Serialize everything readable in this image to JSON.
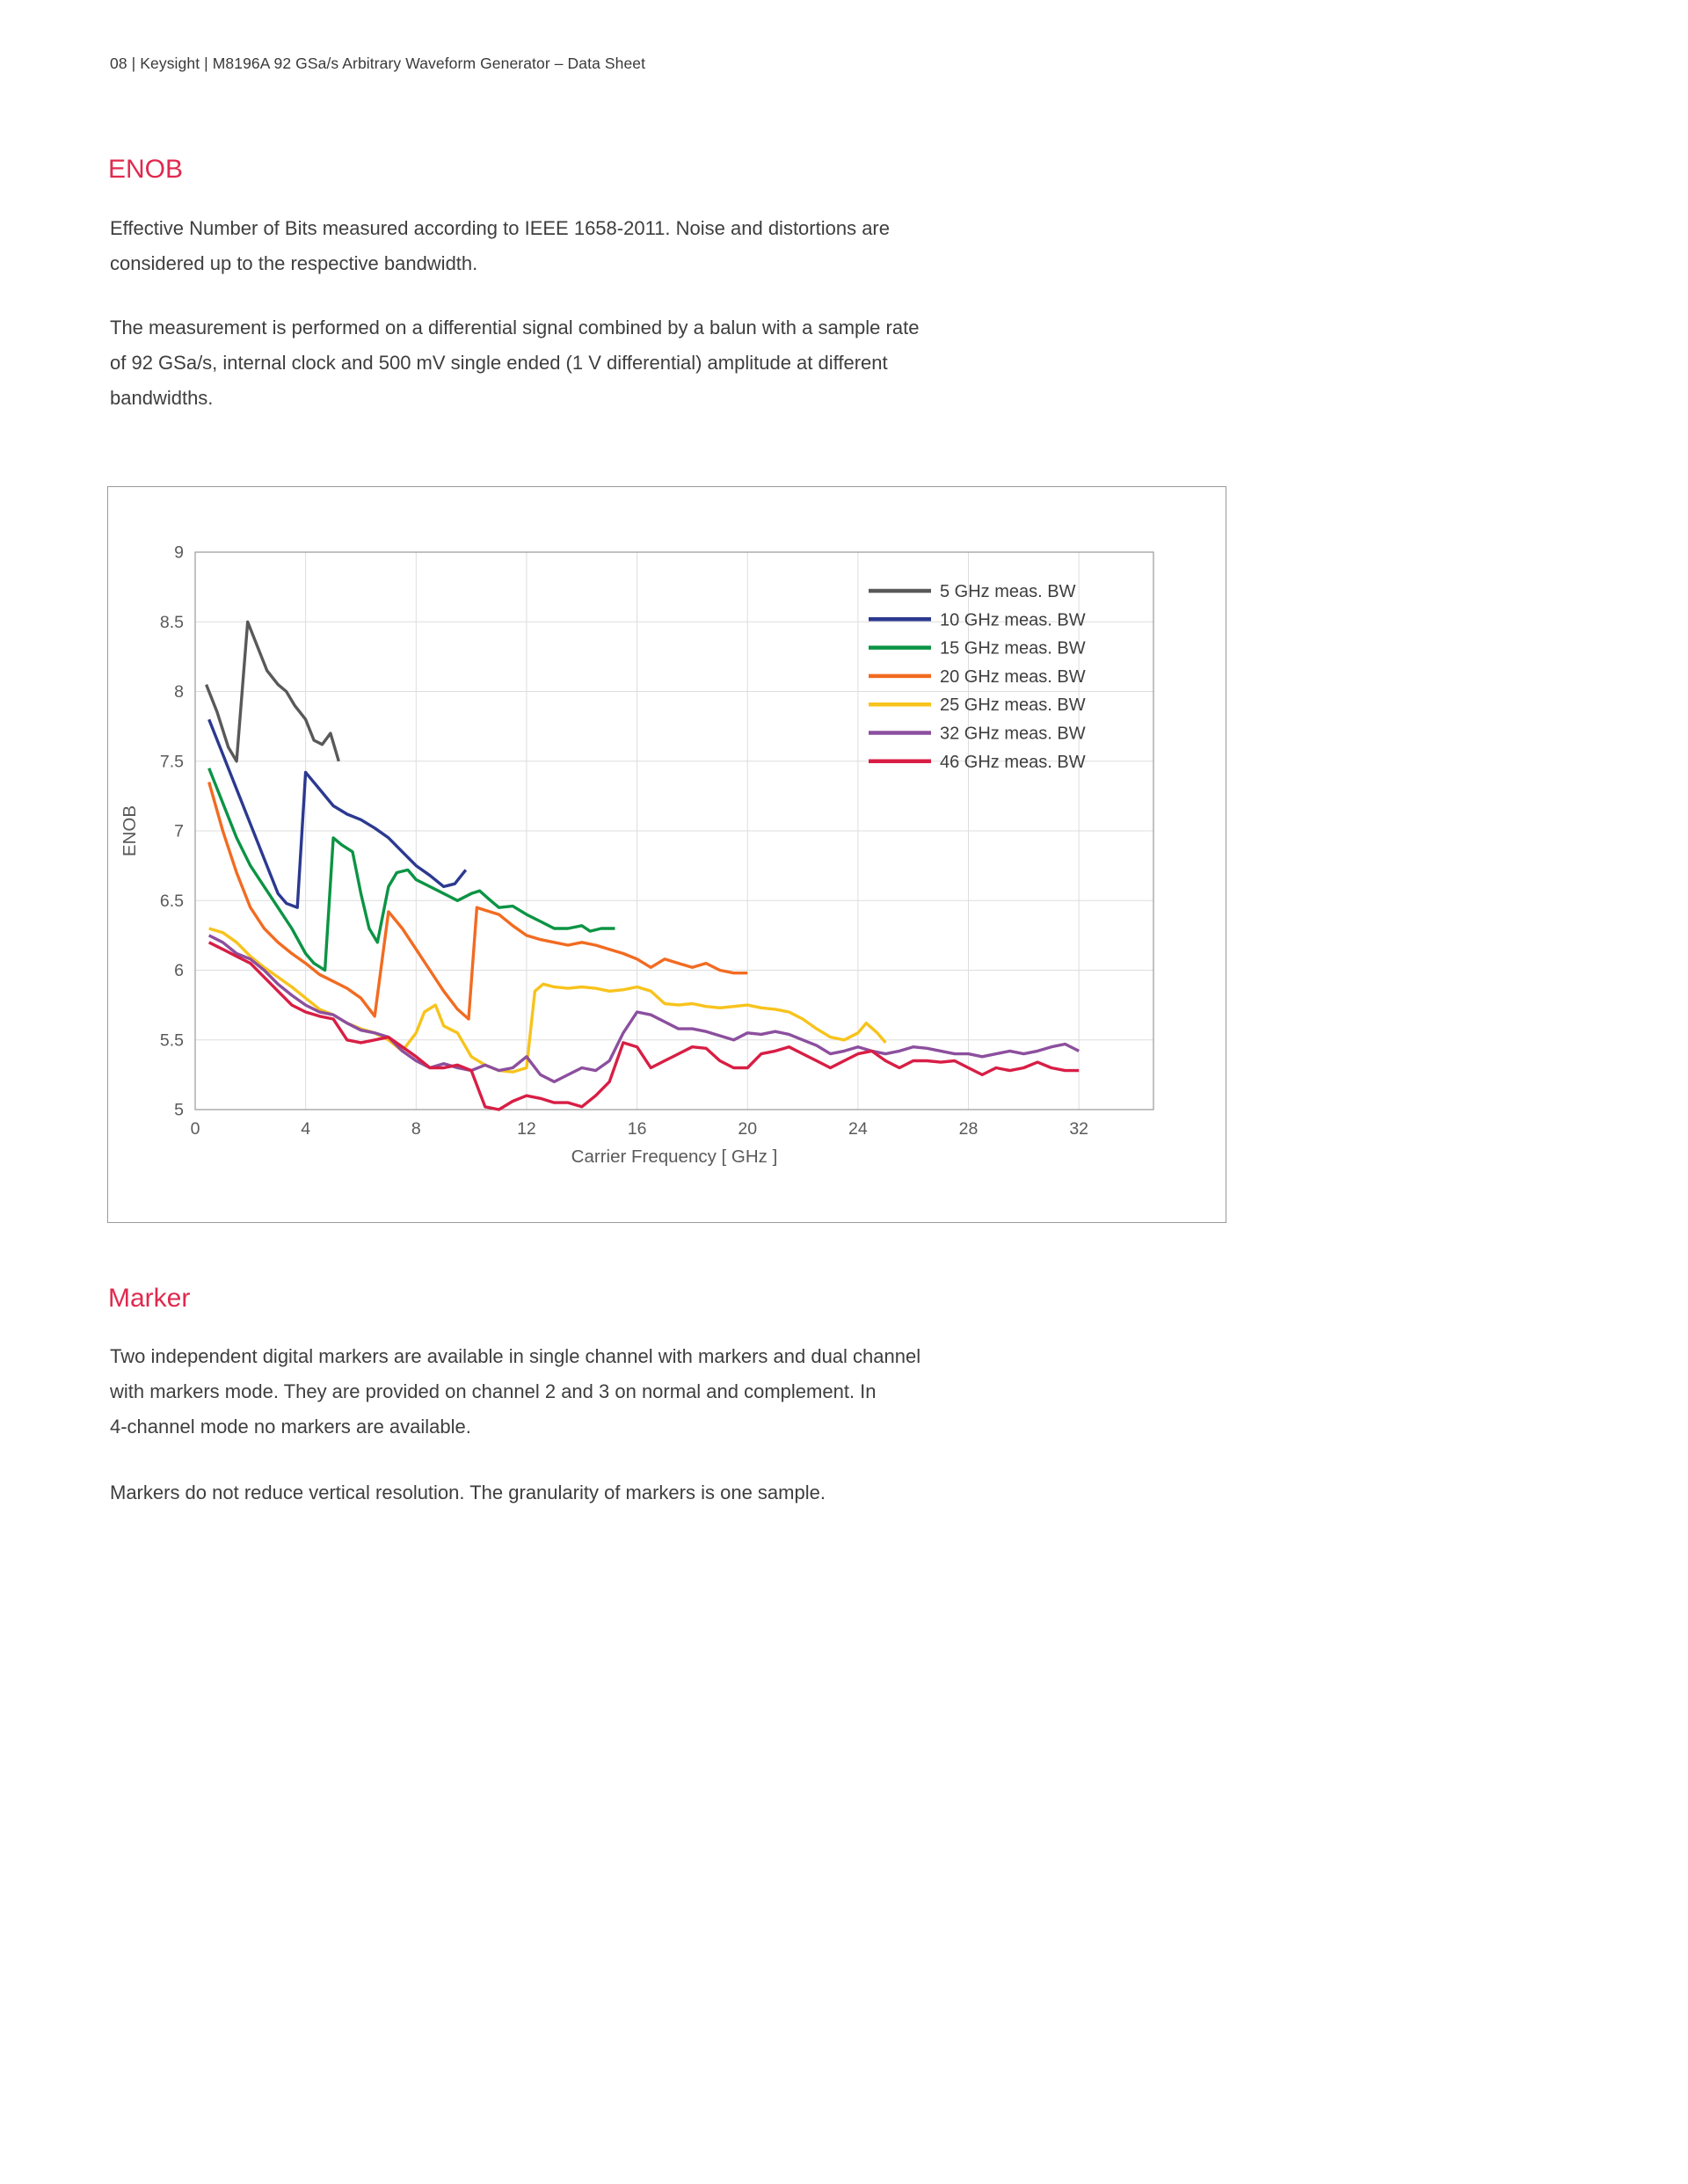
{
  "colors": {
    "accent": "#e0294e",
    "body_text": "#3e3e3e",
    "axis": "#9a9a9a",
    "tick_text": "#5a5a5a",
    "grid": "#dddddd"
  },
  "page": {
    "header": "08 | Keysight | M8196A 92 GSa/s Arbitrary Waveform Generator – Data Sheet"
  },
  "enob": {
    "title": "ENOB",
    "paragraphs": [
      "Effective Number of Bits measured according to IEEE 1658-2011. Noise and distortions are\nconsidered up to the respective bandwidth.",
      "The measurement is performed on a differential signal combined by a balun with a sample rate\nof 92 GSa/s, internal clock and 500 mV single ended (1 V differential) amplitude at different\nbandwidths."
    ]
  },
  "marker": {
    "title": "Marker",
    "paragraphs": [
      "Two independent digital markers are available in single channel with markers and dual channel\nwith markers mode. They are provided on channel 2 and 3 on normal and complement. In\n4-channel mode no markers are available.",
      "Markers do not reduce vertical resolution. The granularity of markers is one sample."
    ]
  },
  "chart_data": {
    "type": "line",
    "title": "",
    "xlabel": "Carrier Frequency [ GHz ]",
    "ylabel": "ENOB",
    "xlim": [
      0,
      34.7
    ],
    "ylim": [
      5,
      9
    ],
    "xticks": [
      0,
      4,
      8,
      12,
      16,
      20,
      24,
      28,
      32
    ],
    "yticks": [
      5,
      5.5,
      6,
      6.5,
      7,
      7.5,
      8,
      8.5,
      9
    ],
    "grid": true,
    "legend_position": "top-right",
    "series": [
      {
        "name": "5 GHz meas. BW",
        "color": "#595959",
        "x": [
          0.4,
          0.8,
          1.2,
          1.5,
          1.9,
          2.2,
          2.6,
          3,
          3.3,
          3.6,
          4,
          4.3,
          4.6,
          4.9,
          5.2
        ],
        "y": [
          8.05,
          7.85,
          7.6,
          7.5,
          8.5,
          8.35,
          8.15,
          8.05,
          8.0,
          7.9,
          7.8,
          7.65,
          7.62,
          7.7,
          7.5
        ]
      },
      {
        "name": "10 GHz meas. BW",
        "color": "#2b3990",
        "x": [
          0.5,
          1,
          1.5,
          2,
          2.5,
          3,
          3.3,
          3.7,
          4,
          4.5,
          5,
          5.5,
          6,
          6.5,
          7,
          7.5,
          8,
          8.5,
          9,
          9.4,
          9.8
        ],
        "y": [
          7.8,
          7.55,
          7.3,
          7.05,
          6.8,
          6.55,
          6.48,
          6.45,
          7.42,
          7.3,
          7.18,
          7.12,
          7.08,
          7.02,
          6.95,
          6.85,
          6.75,
          6.68,
          6.6,
          6.62,
          6.72
        ]
      },
      {
        "name": "15 GHz meas. BW",
        "color": "#0b9444",
        "x": [
          0.5,
          1,
          1.5,
          2,
          2.5,
          3,
          3.5,
          4,
          4.3,
          4.7,
          5,
          5.3,
          5.7,
          6,
          6.3,
          6.6,
          7,
          7.3,
          7.7,
          8,
          8.5,
          9,
          9.5,
          10,
          10.3,
          10.7,
          11,
          11.5,
          12,
          12.5,
          13,
          13.5,
          14,
          14.3,
          14.7,
          15.2
        ],
        "y": [
          7.45,
          7.2,
          6.95,
          6.75,
          6.6,
          6.45,
          6.3,
          6.12,
          6.05,
          6.0,
          6.95,
          6.9,
          6.85,
          6.55,
          6.3,
          6.2,
          6.6,
          6.7,
          6.72,
          6.65,
          6.6,
          6.55,
          6.5,
          6.55,
          6.57,
          6.5,
          6.45,
          6.46,
          6.4,
          6.35,
          6.3,
          6.3,
          6.32,
          6.28,
          6.3,
          6.3
        ]
      },
      {
        "name": "20 GHz meas. BW",
        "color": "#f26b21",
        "x": [
          0.5,
          1,
          1.5,
          2,
          2.5,
          3,
          3.5,
          4,
          4.5,
          5,
          5.5,
          6,
          6.5,
          7,
          7.5,
          8,
          8.5,
          9,
          9.5,
          9.9,
          10.2,
          10.5,
          11,
          11.5,
          12,
          12.5,
          13,
          13.5,
          14,
          14.5,
          15,
          15.5,
          16,
          16.5,
          17,
          17.5,
          18,
          18.5,
          19,
          19.5,
          20
        ],
        "y": [
          7.35,
          7.0,
          6.7,
          6.45,
          6.3,
          6.2,
          6.12,
          6.05,
          5.97,
          5.92,
          5.87,
          5.8,
          5.67,
          6.42,
          6.3,
          6.15,
          6.0,
          5.85,
          5.72,
          5.65,
          6.45,
          6.43,
          6.4,
          6.32,
          6.25,
          6.22,
          6.2,
          6.18,
          6.2,
          6.18,
          6.15,
          6.12,
          6.08,
          6.02,
          6.08,
          6.05,
          6.02,
          6.05,
          6.0,
          5.98,
          5.98
        ]
      },
      {
        "name": "25 GHz meas. BW",
        "color": "#f7c31c",
        "x": [
          0.5,
          1,
          1.5,
          2,
          2.5,
          3,
          3.5,
          4,
          4.5,
          5,
          5.5,
          6,
          6.5,
          7,
          7.5,
          8,
          8.3,
          8.7,
          9,
          9.5,
          10,
          10.5,
          11,
          11.5,
          12,
          12.3,
          12.6,
          13,
          13.5,
          14,
          14.5,
          15,
          15.5,
          16,
          16.5,
          17,
          17.5,
          18,
          18.5,
          19,
          19.5,
          20,
          20.5,
          21,
          21.5,
          22,
          22.5,
          23,
          23.5,
          24,
          24.3,
          24.7,
          25
        ],
        "y": [
          6.3,
          6.27,
          6.2,
          6.1,
          6.02,
          5.95,
          5.88,
          5.8,
          5.72,
          5.68,
          5.62,
          5.58,
          5.55,
          5.5,
          5.42,
          5.55,
          5.7,
          5.75,
          5.6,
          5.55,
          5.38,
          5.32,
          5.28,
          5.27,
          5.3,
          5.85,
          5.9,
          5.88,
          5.87,
          5.88,
          5.87,
          5.85,
          5.86,
          5.88,
          5.85,
          5.76,
          5.75,
          5.76,
          5.74,
          5.73,
          5.74,
          5.75,
          5.73,
          5.72,
          5.7,
          5.65,
          5.58,
          5.52,
          5.5,
          5.55,
          5.62,
          5.55,
          5.48
        ]
      },
      {
        "name": "32 GHz meas. BW",
        "color": "#8c4f9e",
        "x": [
          0.5,
          1,
          1.5,
          2,
          2.5,
          3,
          3.5,
          4,
          4.5,
          5,
          5.5,
          6,
          6.5,
          7,
          7.5,
          8,
          8.5,
          9,
          9.5,
          10,
          10.5,
          11,
          11.5,
          12,
          12.5,
          13,
          13.5,
          14,
          14.5,
          15,
          15.5,
          16,
          16.5,
          17,
          17.5,
          18,
          18.5,
          19,
          19.5,
          20,
          20.5,
          21,
          21.5,
          22,
          22.5,
          23,
          23.5,
          24,
          24.5,
          25,
          25.5,
          26,
          26.5,
          27,
          27.5,
          28,
          28.5,
          29,
          29.5,
          30,
          30.5,
          31,
          31.5,
          32
        ],
        "y": [
          6.25,
          6.2,
          6.12,
          6.08,
          6.0,
          5.9,
          5.82,
          5.75,
          5.7,
          5.68,
          5.62,
          5.57,
          5.55,
          5.52,
          5.42,
          5.35,
          5.3,
          5.33,
          5.3,
          5.28,
          5.32,
          5.28,
          5.3,
          5.38,
          5.25,
          5.2,
          5.25,
          5.3,
          5.28,
          5.35,
          5.55,
          5.7,
          5.68,
          5.63,
          5.58,
          5.58,
          5.56,
          5.53,
          5.5,
          5.55,
          5.54,
          5.56,
          5.54,
          5.5,
          5.46,
          5.4,
          5.42,
          5.45,
          5.42,
          5.4,
          5.42,
          5.45,
          5.44,
          5.42,
          5.4,
          5.4,
          5.38,
          5.4,
          5.42,
          5.4,
          5.42,
          5.45,
          5.47,
          5.42
        ]
      },
      {
        "name": "46 GHz meas. BW",
        "color": "#d81e45",
        "x": [
          0.5,
          1,
          1.5,
          2,
          2.5,
          3,
          3.5,
          4,
          4.5,
          5,
          5.5,
          6,
          6.5,
          7,
          7.5,
          8,
          8.5,
          9,
          9.5,
          10,
          10.5,
          11,
          11.5,
          12,
          12.5,
          13,
          13.5,
          14,
          14.5,
          15,
          15.5,
          16,
          16.5,
          17,
          17.5,
          18,
          18.5,
          19,
          19.5,
          20,
          20.5,
          21,
          21.5,
          22,
          22.5,
          23,
          23.5,
          24,
          24.5,
          25,
          25.5,
          26,
          26.5,
          27,
          27.5,
          28,
          28.5,
          29,
          29.5,
          30,
          30.5,
          31,
          31.5,
          32
        ],
        "y": [
          6.2,
          6.15,
          6.1,
          6.05,
          5.95,
          5.85,
          5.75,
          5.7,
          5.67,
          5.65,
          5.5,
          5.48,
          5.5,
          5.52,
          5.45,
          5.38,
          5.3,
          5.3,
          5.32,
          5.28,
          5.02,
          5.0,
          5.06,
          5.1,
          5.08,
          5.05,
          5.05,
          5.02,
          5.1,
          5.2,
          5.48,
          5.45,
          5.3,
          5.35,
          5.4,
          5.45,
          5.44,
          5.35,
          5.3,
          5.3,
          5.4,
          5.42,
          5.45,
          5.4,
          5.35,
          5.3,
          5.35,
          5.4,
          5.42,
          5.35,
          5.3,
          5.35,
          5.35,
          5.34,
          5.35,
          5.3,
          5.25,
          5.3,
          5.28,
          5.3,
          5.34,
          5.3,
          5.28,
          5.28
        ]
      }
    ]
  }
}
